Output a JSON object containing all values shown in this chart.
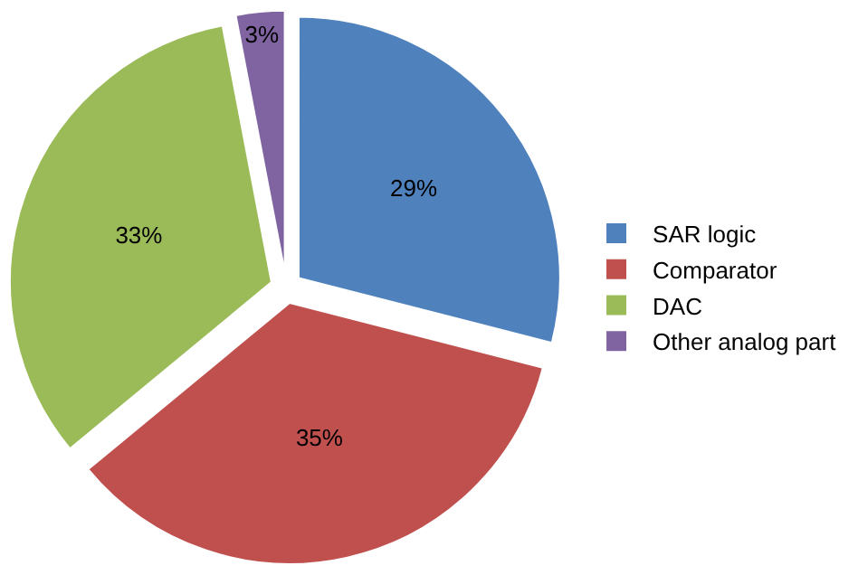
{
  "chart_data": {
    "type": "pie",
    "categories": [
      "SAR logic",
      "Comparator",
      "DAC",
      "Other analog part"
    ],
    "values": [
      29,
      35,
      33,
      3
    ],
    "colors": [
      "#4f81bd",
      "#c0504d",
      "#9bbb59",
      "#8064a2"
    ],
    "value_labels": [
      "29%",
      "35%",
      "33%",
      "3%"
    ],
    "legend": "right"
  }
}
